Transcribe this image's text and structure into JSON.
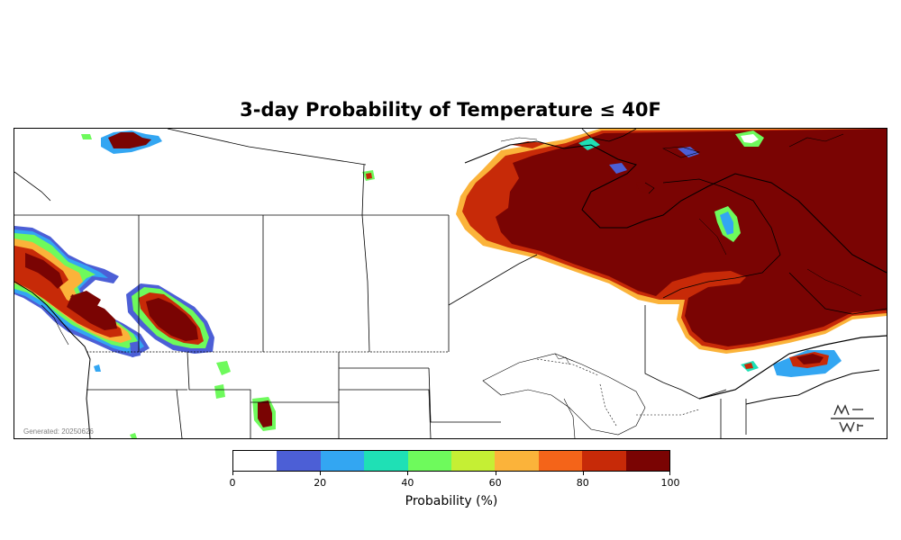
{
  "title": "3-day Probability of Temperature ≤ 40F",
  "generated": "Generated: 20250626",
  "colorbar": {
    "label": "Probability (%)",
    "bins": [
      {
        "from": 0,
        "to": 10,
        "color": "#ffffff"
      },
      {
        "from": 10,
        "to": 20,
        "color": "#4c5fd6"
      },
      {
        "from": 20,
        "to": 30,
        "color": "#33a6f2"
      },
      {
        "from": 30,
        "to": 40,
        "color": "#1fe0b5"
      },
      {
        "from": 40,
        "to": 50,
        "color": "#6efa5c"
      },
      {
        "from": 50,
        "to": 60,
        "color": "#c5ef34"
      },
      {
        "from": 60,
        "to": 70,
        "color": "#fbb33a"
      },
      {
        "from": 70,
        "to": 80,
        "color": "#f46419"
      },
      {
        "from": 80,
        "to": 90,
        "color": "#c72a08"
      },
      {
        "from": 90,
        "to": 100,
        "color": "#7a0403"
      }
    ],
    "tick_labels": [
      "0",
      "20",
      "40",
      "60",
      "80",
      "100"
    ],
    "tick_values": [
      0,
      20,
      40,
      60,
      80,
      100
    ]
  },
  "colors": {
    "peak": "#7a0403",
    "border": "#000000"
  }
}
